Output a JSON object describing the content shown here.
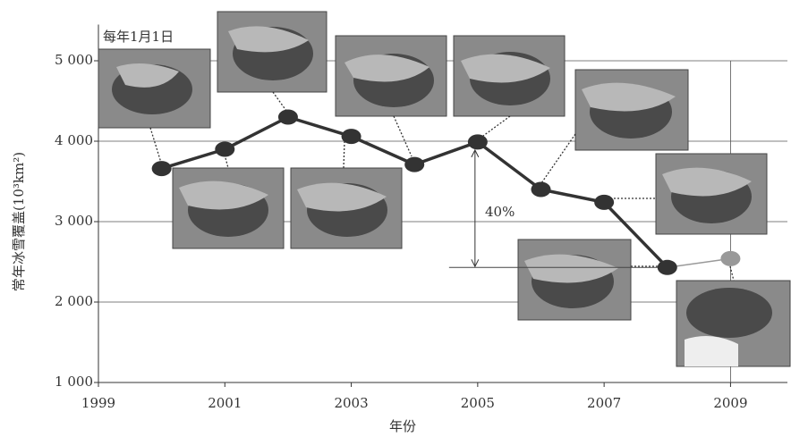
{
  "chart_data": {
    "type": "line",
    "y_label": "常年冰雪覆盖(10³km²)",
    "x_label": "年份",
    "annotation": "每年1月1日",
    "change_label": "40%",
    "x": [
      2000,
      2001,
      2002,
      2003,
      2004,
      2005,
      2006,
      2007,
      2008,
      2009
    ],
    "series": [
      {
        "color": "#333333",
        "values": [
          3660,
          3900,
          4300,
          4060,
          3710,
          3990,
          3400,
          3240,
          2430,
          2540
        ]
      }
    ],
    "point_colors": [
      "#333333",
      "#333333",
      "#333333",
      "#333333",
      "#333333",
      "#333333",
      "#333333",
      "#333333",
      "#333333",
      "#999999"
    ],
    "xlim": [
      1999,
      2009.9
    ],
    "xticks": [
      1999,
      2001,
      2003,
      2005,
      2007,
      2009
    ],
    "ylim": [
      1000,
      5450
    ],
    "yticks": [
      {
        "value": 1000,
        "label": "1 000"
      },
      {
        "value": 2000,
        "label": "2 000"
      },
      {
        "value": 3000,
        "label": "3 000"
      },
      {
        "value": 4000,
        "label": "4 000"
      },
      {
        "value": 5000,
        "label": "5 000"
      }
    ],
    "grid": true
  }
}
